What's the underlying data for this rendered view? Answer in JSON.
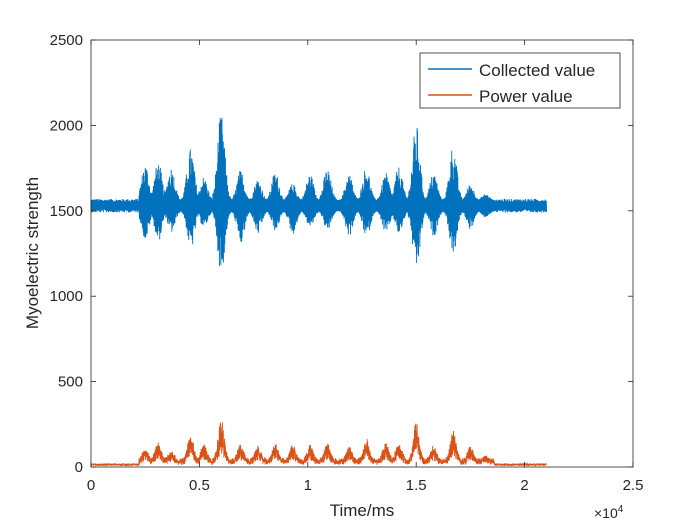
{
  "chart_data": {
    "type": "line",
    "xlabel": "Time/ms",
    "ylabel": "Myoelectric strength",
    "x_exponent_label": "×10",
    "x_exponent_power": "4",
    "xlim": [
      0,
      25000
    ],
    "ylim": [
      0,
      2500
    ],
    "x_ticks": [
      0,
      5000,
      10000,
      15000,
      20000,
      25000
    ],
    "x_tick_labels": [
      "0",
      "0.5",
      "1",
      "1.5",
      "2",
      "2.5"
    ],
    "y_ticks": [
      0,
      500,
      1000,
      1500,
      2000,
      2500
    ],
    "y_tick_labels": [
      "0",
      "500",
      "1000",
      "1500",
      "2000",
      "2500"
    ],
    "grid": false,
    "legend_position": "top-right",
    "series": [
      {
        "name": "Collected value",
        "color": "#0072BD",
        "baseline": 1530,
        "x_start": 0,
        "x_end": 21000,
        "bursts": [
          {
            "x": 2500,
            "max": 1780,
            "min": 1330
          },
          {
            "x": 3100,
            "max": 1790,
            "min": 1320
          },
          {
            "x": 3700,
            "max": 1760,
            "min": 1370
          },
          {
            "x": 4600,
            "max": 1870,
            "min": 1270
          },
          {
            "x": 5200,
            "max": 1700,
            "min": 1400
          },
          {
            "x": 6000,
            "max": 2070,
            "min": 1130
          },
          {
            "x": 6900,
            "max": 1740,
            "min": 1300
          },
          {
            "x": 7700,
            "max": 1690,
            "min": 1360
          },
          {
            "x": 8500,
            "max": 1730,
            "min": 1380
          },
          {
            "x": 9300,
            "max": 1660,
            "min": 1360
          },
          {
            "x": 10100,
            "max": 1720,
            "min": 1400
          },
          {
            "x": 10900,
            "max": 1750,
            "min": 1380
          },
          {
            "x": 11900,
            "max": 1720,
            "min": 1350
          },
          {
            "x": 12700,
            "max": 1760,
            "min": 1340
          },
          {
            "x": 13600,
            "max": 1720,
            "min": 1360
          },
          {
            "x": 14200,
            "max": 1760,
            "min": 1360
          },
          {
            "x": 15000,
            "max": 2010,
            "min": 1140
          },
          {
            "x": 15800,
            "max": 1730,
            "min": 1350
          },
          {
            "x": 16700,
            "max": 1890,
            "min": 1240
          },
          {
            "x": 17500,
            "max": 1660,
            "min": 1390
          },
          {
            "x": 18200,
            "max": 1600,
            "min": 1460
          }
        ]
      },
      {
        "name": "Power value",
        "color": "#D95319",
        "baseline": 15,
        "x_start": 0,
        "x_end": 21000,
        "bursts": [
          {
            "x": 2500,
            "max": 110
          },
          {
            "x": 3100,
            "max": 145
          },
          {
            "x": 3700,
            "max": 95
          },
          {
            "x": 4600,
            "max": 195
          },
          {
            "x": 5200,
            "max": 140
          },
          {
            "x": 6000,
            "max": 285
          },
          {
            "x": 6900,
            "max": 135
          },
          {
            "x": 7700,
            "max": 125
          },
          {
            "x": 8500,
            "max": 140
          },
          {
            "x": 9300,
            "max": 135
          },
          {
            "x": 10100,
            "max": 130
          },
          {
            "x": 10900,
            "max": 140
          },
          {
            "x": 11900,
            "max": 130
          },
          {
            "x": 12700,
            "max": 175
          },
          {
            "x": 13600,
            "max": 145
          },
          {
            "x": 14200,
            "max": 155
          },
          {
            "x": 15000,
            "max": 265
          },
          {
            "x": 15800,
            "max": 130
          },
          {
            "x": 16700,
            "max": 215
          },
          {
            "x": 17500,
            "max": 120
          },
          {
            "x": 18200,
            "max": 70
          }
        ]
      }
    ]
  }
}
